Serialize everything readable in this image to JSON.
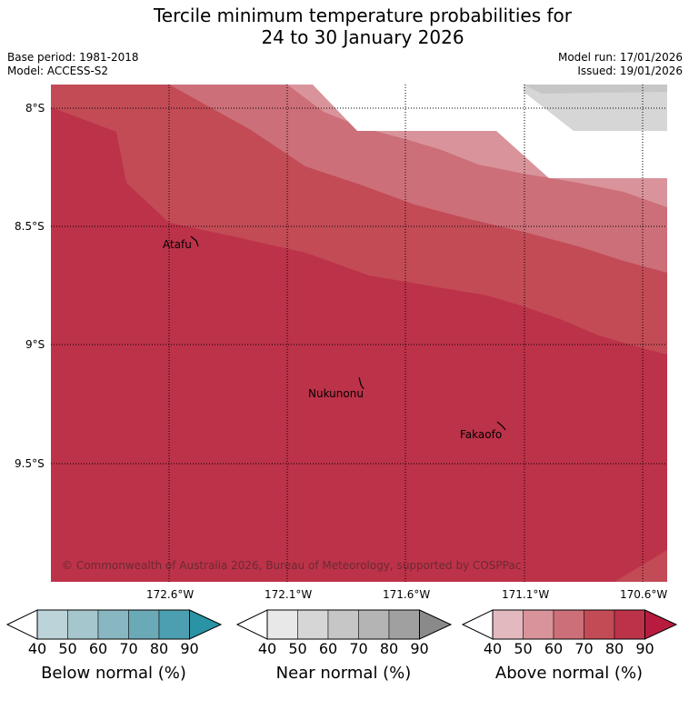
{
  "title_line1": "Tercile minimum temperature probabilities for",
  "title_line2": "24 to 30 January 2026",
  "base_period": "Base period: 1981-2018",
  "model": "Model: ACCESS-S2",
  "model_run": "Model run: 17/01/2026",
  "issued": "Issued: 19/01/2026",
  "lat_labels": [
    "8°S",
    "8.5°S",
    "9°S",
    "9.5°S"
  ],
  "lon_labels": [
    "172.6°W",
    "172.1°W",
    "171.6°W",
    "171.1°W",
    "170.6°W"
  ],
  "places": [
    "Atafu",
    "Nukunonu",
    "Fakaofo"
  ],
  "copyright": "© Commonwealth of Australia 2026, Bureau of Meteorology, supported by COSPPac",
  "colorbars": [
    {
      "title": "Below normal (%)",
      "ticks": [
        "40",
        "50",
        "60",
        "70",
        "80",
        "90"
      ],
      "colors": [
        "#ffffff",
        "#bdd3da",
        "#a6c6cd",
        "#88b7c1",
        "#6aa9b6",
        "#4b9fb0",
        "#2a93a6"
      ]
    },
    {
      "title": "Near normal (%)",
      "ticks": [
        "40",
        "50",
        "60",
        "70",
        "80",
        "90"
      ],
      "colors": [
        "#ffffff",
        "#e8e8e8",
        "#d6d6d6",
        "#c6c6c6",
        "#b4b4b4",
        "#a0a0a0",
        "#8a8a8a"
      ]
    },
    {
      "title": "Above normal (%)",
      "ticks": [
        "40",
        "50",
        "60",
        "70",
        "80",
        "90"
      ],
      "colors": [
        "#ffffff",
        "#e2b9bf",
        "#d9949b",
        "#cc6f78",
        "#c24b56",
        "#bc3249",
        "#b71c3f"
      ]
    }
  ],
  "map_colors": {
    "above_80": "#bc3249",
    "above_70": "#c24b56",
    "above_60": "#cc6f78",
    "above_50": "#d9949b",
    "near_50": "#d6d6d6",
    "near_60": "#c6c6c6"
  }
}
